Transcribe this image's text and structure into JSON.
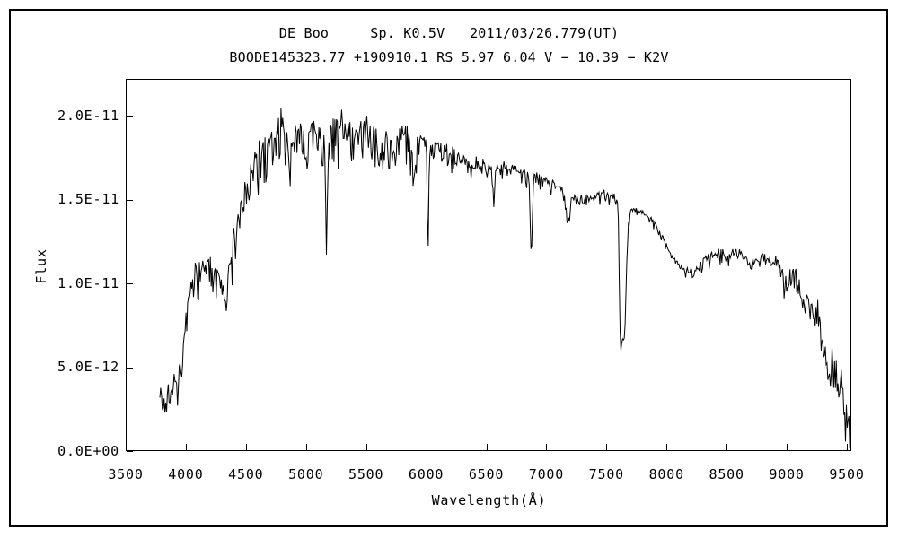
{
  "page": {
    "background": "#ffffff",
    "foreground": "#000000"
  },
  "chart_data": {
    "type": "line",
    "title": "DE Boo     Sp. K0.5V   2011/03/26.779(UT)",
    "subtitle": "BOODE145323.77 +190910.1 RS 5.97 6.04 V − 10.39 − K2V",
    "xlabel": "Wavelength(Å)",
    "ylabel": "Flux",
    "line_color": "#000000",
    "grid": false,
    "legend": "none",
    "xlim": [
      3500,
      9500
    ],
    "ylim": [
      0,
      2.22e-11
    ],
    "flux_unit": 1e-12,
    "x_ticks": [
      3500,
      4000,
      4500,
      5000,
      5500,
      6000,
      6500,
      7000,
      7500,
      8000,
      8500,
      9000,
      9500
    ],
    "y_ticks": [
      {
        "v": 0,
        "label": "0.0E+00"
      },
      {
        "v": 5,
        "label": "5.0E-12"
      },
      {
        "v": 10,
        "label": "1.0E-11"
      },
      {
        "v": 15,
        "label": "1.5E-11"
      },
      {
        "v": 20,
        "label": "2.0E-11"
      }
    ],
    "series": [
      {
        "name": "DE Boo flux spectrum",
        "wavelength_range": [
          3784,
          9535
        ],
        "anchor_points": [
          [
            3784,
            4.4
          ],
          [
            3800,
            3.1
          ],
          [
            3825,
            2.5
          ],
          [
            3852,
            4.1
          ],
          [
            3872,
            3.4
          ],
          [
            3900,
            4.6
          ],
          [
            3928,
            4.2
          ],
          [
            3955,
            5.3
          ],
          [
            3985,
            6.6
          ],
          [
            4012,
            8.6
          ],
          [
            4045,
            10.0
          ],
          [
            4075,
            11.0
          ],
          [
            4110,
            11.4
          ],
          [
            4155,
            11.2
          ],
          [
            4200,
            11.5
          ],
          [
            4250,
            10.9
          ],
          [
            4300,
            10.1
          ],
          [
            4332,
            10.3
          ],
          [
            4370,
            11.8
          ],
          [
            4400,
            12.9
          ],
          [
            4440,
            14.0
          ],
          [
            4480,
            15.2
          ],
          [
            4520,
            16.5
          ],
          [
            4560,
            17.4
          ],
          [
            4610,
            18.1
          ],
          [
            4660,
            18.3
          ],
          [
            4700,
            18.9
          ],
          [
            4750,
            19.1
          ],
          [
            4800,
            19.5
          ],
          [
            4845,
            19.0
          ],
          [
            4900,
            18.9
          ],
          [
            4950,
            19.3
          ],
          [
            5000,
            19.0
          ],
          [
            5060,
            19.3
          ],
          [
            5120,
            19.0
          ],
          [
            5180,
            18.9
          ],
          [
            5240,
            19.5
          ],
          [
            5300,
            20.0
          ],
          [
            5360,
            19.7
          ],
          [
            5420,
            19.1
          ],
          [
            5480,
            19.4
          ],
          [
            5540,
            19.8
          ],
          [
            5600,
            18.9
          ],
          [
            5660,
            18.9
          ],
          [
            5720,
            18.7
          ],
          [
            5780,
            19.0
          ],
          [
            5840,
            18.9
          ],
          [
            5900,
            18.5
          ],
          [
            5950,
            18.6
          ],
          [
            6050,
            18.3
          ],
          [
            6150,
            18.0
          ],
          [
            6250,
            17.6
          ],
          [
            6350,
            17.2
          ],
          [
            6450,
            17.0
          ],
          [
            6550,
            16.9
          ],
          [
            6650,
            17.1
          ],
          [
            6750,
            16.9
          ],
          [
            6850,
            16.5
          ],
          [
            6920,
            16.4
          ],
          [
            7000,
            16.2
          ],
          [
            7080,
            15.8
          ],
          [
            7160,
            15.5
          ],
          [
            7250,
            15.2
          ],
          [
            7350,
            15.1
          ],
          [
            7450,
            15.3
          ],
          [
            7550,
            15.2
          ],
          [
            7590,
            15.0
          ],
          [
            7598,
            14.2
          ],
          [
            7604,
            11.5
          ],
          [
            7612,
            7.5
          ],
          [
            7620,
            6.1
          ],
          [
            7632,
            6.5
          ],
          [
            7645,
            6.8
          ],
          [
            7655,
            7.4
          ],
          [
            7663,
            9.8
          ],
          [
            7672,
            12.2
          ],
          [
            7682,
            13.6
          ],
          [
            7692,
            14.0
          ],
          [
            7700,
            14.4
          ],
          [
            7780,
            14.3
          ],
          [
            7860,
            14.0
          ],
          [
            7920,
            13.3
          ],
          [
            7980,
            12.6
          ],
          [
            8040,
            11.6
          ],
          [
            8100,
            11.1
          ],
          [
            8160,
            10.8
          ],
          [
            8220,
            10.7
          ],
          [
            8280,
            11.1
          ],
          [
            8330,
            11.5
          ],
          [
            8390,
            11.8
          ],
          [
            8450,
            11.9
          ],
          [
            8500,
            11.6
          ],
          [
            8550,
            11.9
          ],
          [
            8610,
            12.0
          ],
          [
            8660,
            11.5
          ],
          [
            8700,
            11.1
          ],
          [
            8750,
            11.5
          ],
          [
            8800,
            11.6
          ],
          [
            8870,
            11.3
          ],
          [
            8930,
            11.1
          ],
          [
            8980,
            10.3
          ],
          [
            9020,
            10.2
          ],
          [
            9070,
            10.5
          ],
          [
            9120,
            9.6
          ],
          [
            9180,
            9.0
          ],
          [
            9240,
            8.0
          ],
          [
            9300,
            6.6
          ],
          [
            9360,
            5.6
          ],
          [
            9420,
            4.6
          ],
          [
            9470,
            3.4
          ],
          [
            9500,
            2.6
          ],
          [
            9520,
            1.9
          ],
          [
            9535,
            0.9
          ]
        ],
        "absorption_features": [
          {
            "wl": 3933,
            "depth": 1.0,
            "sigma": 6
          },
          {
            "wl": 3968,
            "depth": 1.0,
            "sigma": 6
          },
          {
            "wl": 4101,
            "depth": 1.2,
            "sigma": 7
          },
          {
            "wl": 4226,
            "depth": 0.9,
            "sigma": 5
          },
          {
            "wl": 4340,
            "depth": 1.2,
            "sigma": 7
          },
          {
            "wl": 4383,
            "depth": 1.0,
            "sigma": 5
          },
          {
            "wl": 4861,
            "depth": 3.3,
            "sigma": 7
          },
          {
            "wl": 5172,
            "depth": 5.4,
            "sigma": 9
          },
          {
            "wl": 5270,
            "depth": 1.6,
            "sigma": 6
          },
          {
            "wl": 5893,
            "depth": 2.6,
            "sigma": 6
          },
          {
            "wl": 6015,
            "depth": 5.8,
            "sigma": 6
          },
          {
            "wl": 6563,
            "depth": 2.3,
            "sigma": 6
          },
          {
            "wl": 6875,
            "depth": 4.8,
            "sigma": 8
          },
          {
            "wl": 7180,
            "depth": 1.7,
            "sigma": 16
          }
        ],
        "noise_model": {
          "seed": 1337,
          "step_angstrom": 7,
          "up_spike_prob": 0.12,
          "up_spike_scale": 0.5,
          "regions": [
            [
              3784,
              4000,
              0.45,
              0.35,
              1.1
            ],
            [
              4000,
              4360,
              0.4,
              0.4,
              1.5
            ],
            [
              4360,
              4560,
              0.55,
              0.45,
              2.0
            ],
            [
              4560,
              5950,
              0.5,
              0.5,
              2.3
            ],
            [
              5950,
              6520,
              0.28,
              0.35,
              1.0
            ],
            [
              6520,
              6905,
              0.22,
              0.3,
              0.7
            ],
            [
              6905,
              7585,
              0.2,
              0.25,
              0.6
            ],
            [
              7585,
              8280,
              0.15,
              0.2,
              0.4
            ],
            [
              8280,
              8900,
              0.25,
              0.3,
              0.6
            ],
            [
              8900,
              9250,
              0.5,
              0.4,
              1.0
            ],
            [
              9250,
              9545,
              1.1,
              0.5,
              1.6
            ]
          ]
        }
      }
    ]
  }
}
